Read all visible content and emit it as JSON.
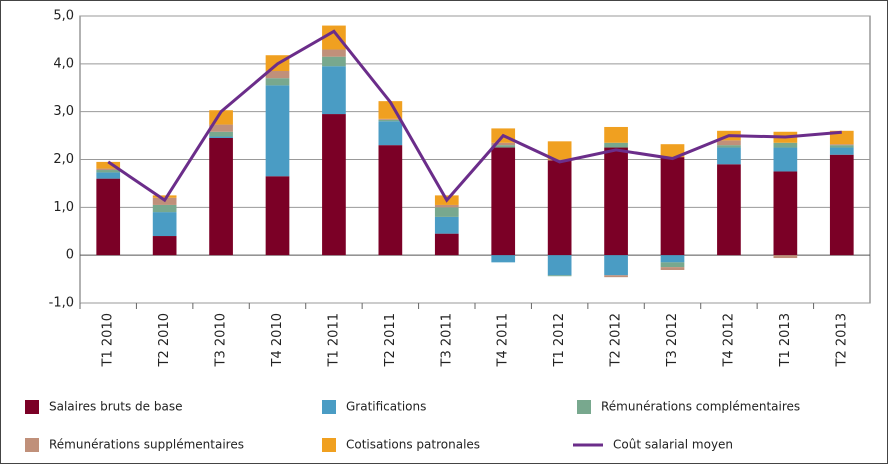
{
  "chart_data": {
    "type": "stacked-bar-line",
    "categories": [
      "T1 2010",
      "T2 2010",
      "T3 2010",
      "T4 2010",
      "T1 2011",
      "T2 2011",
      "T3 2011",
      "T4 2011",
      "T1 2012",
      "T2 2012",
      "T3 2012",
      "T4 2012",
      "T1 2013",
      "T2 2013"
    ],
    "series": [
      {
        "name": "Salaires bruts de base",
        "type": "bar",
        "color": "#7b0026",
        "values": [
          1.6,
          0.4,
          2.45,
          1.65,
          2.95,
          2.3,
          0.45,
          2.25,
          1.98,
          2.25,
          2.05,
          1.9,
          1.75,
          2.1
        ]
      },
      {
        "name": "Gratifications",
        "type": "bar",
        "color": "#4a9cc4",
        "values": [
          0.13,
          0.5,
          0.03,
          1.9,
          1.0,
          0.5,
          0.35,
          -0.15,
          -0.42,
          -0.42,
          -0.15,
          0.35,
          0.5,
          0.15
        ]
      },
      {
        "name": "Rémunérations complémentaires",
        "type": "bar",
        "color": "#78a88e",
        "values": [
          0.05,
          0.15,
          0.1,
          0.15,
          0.2,
          0.03,
          0.2,
          0.05,
          -0.02,
          0.1,
          -0.1,
          0.05,
          0.1,
          0.05
        ]
      },
      {
        "name": "Rémunérations supplémentaires",
        "type": "bar",
        "color": "#c0907a",
        "values": [
          0.03,
          0.15,
          0.15,
          0.15,
          0.15,
          0.02,
          0.05,
          0.05,
          0.02,
          -0.04,
          -0.06,
          0.1,
          -0.06,
          0.02
        ]
      },
      {
        "name": "Cotisations patronales",
        "type": "bar",
        "color": "#f0a020",
        "values": [
          0.14,
          0.05,
          0.3,
          0.33,
          0.5,
          0.37,
          0.2,
          0.3,
          0.38,
          0.33,
          0.27,
          0.2,
          0.23,
          0.28
        ]
      },
      {
        "name": "Coût salarial moyen",
        "type": "line",
        "color": "#6b2d8a",
        "values": [
          1.95,
          1.15,
          3.0,
          4.0,
          4.68,
          3.2,
          1.15,
          2.5,
          1.95,
          2.2,
          2.02,
          2.5,
          2.47,
          2.57
        ]
      }
    ],
    "ylim": [
      -1,
      5
    ],
    "yticks": [
      {
        "value": -1,
        "label": "-1,0"
      },
      0,
      {
        "value": 1,
        "label": "1,0"
      },
      {
        "value": 2,
        "label": "2,0"
      },
      {
        "value": 3,
        "label": "3,0"
      },
      {
        "value": 4,
        "label": "4,0"
      },
      {
        "value": 5,
        "label": "5,0"
      }
    ],
    "grid": true
  }
}
